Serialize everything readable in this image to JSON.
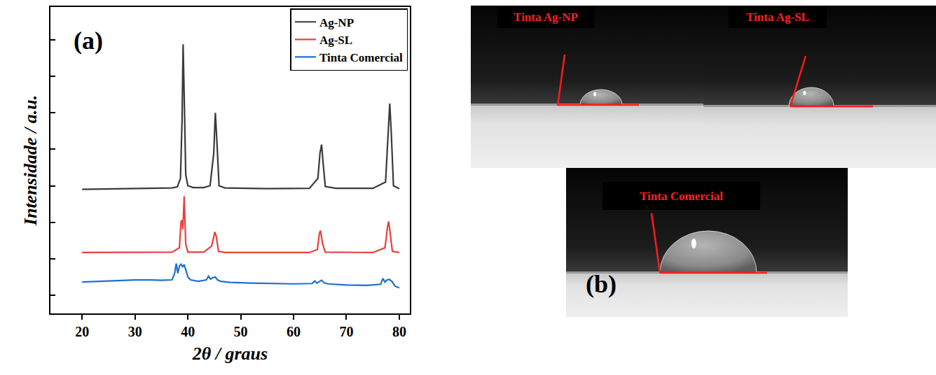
{
  "chart_data": {
    "type": "line",
    "panel_label": "(a)",
    "x_label": "2θ / graus",
    "y_label": "Intensidade / a.u.",
    "xlim": [
      14,
      82
    ],
    "xticks": [
      20,
      30,
      40,
      50,
      60,
      70,
      80
    ],
    "ylim": [
      -0.5,
      7.9
    ],
    "yticks": [
      0,
      1,
      2,
      3,
      4,
      5,
      6,
      7
    ],
    "tick_labels": "x",
    "legend": "top-right",
    "series": [
      {
        "name": "Ag-NP",
        "color": "#3a3a3a",
        "x": [
          20,
          30,
          37,
          38,
          38.6,
          38.9,
          39.1,
          39.3,
          39.6,
          40.0,
          41,
          43,
          44.2,
          44.9,
          45.2,
          45.5,
          45.9,
          47,
          55,
          63,
          64.6,
          65.0,
          65.3,
          65.6,
          66.0,
          68,
          75,
          77.4,
          77.9,
          78.2,
          78.5,
          78.9,
          80
        ],
        "values": [
          2.9,
          2.92,
          2.94,
          2.97,
          3.2,
          4.8,
          6.88,
          5.5,
          3.3,
          3.0,
          2.95,
          2.95,
          3.0,
          3.9,
          5.0,
          4.2,
          3.0,
          2.94,
          2.92,
          2.93,
          3.2,
          3.9,
          4.13,
          3.6,
          2.98,
          2.93,
          2.93,
          3.1,
          4.5,
          5.25,
          4.4,
          3.0,
          2.92
        ]
      },
      {
        "name": "Ag-SL",
        "color": "#e8413c",
        "x": [
          20,
          30,
          37,
          38.4,
          38.7,
          38.9,
          39.05,
          39.3,
          39.6,
          40,
          43,
          44.5,
          44.9,
          45.1,
          45.4,
          45.8,
          47,
          55,
          63,
          64.5,
          64.9,
          65.1,
          65.5,
          66,
          75,
          77.3,
          77.8,
          78.0,
          78.3,
          78.7,
          80
        ],
        "values": [
          1.17,
          1.17,
          1.18,
          1.3,
          2.0,
          2.06,
          1.8,
          2.71,
          1.4,
          1.18,
          1.18,
          1.35,
          1.65,
          1.73,
          1.6,
          1.2,
          1.17,
          1.17,
          1.17,
          1.25,
          1.7,
          1.77,
          1.4,
          1.18,
          1.17,
          1.3,
          1.9,
          2.02,
          1.7,
          1.2,
          1.17
        ]
      },
      {
        "name": "Tinta Comercial",
        "color": "#1f6fd1",
        "x": [
          20,
          22,
          25,
          28,
          30,
          33,
          35,
          37,
          37.5,
          37.8,
          38.1,
          38.4,
          38.7,
          39.0,
          39.3,
          39.6,
          40.0,
          40.5,
          42,
          43.5,
          43.9,
          44.3,
          44.7,
          45.2,
          45.6,
          46.2,
          48,
          52,
          56,
          60,
          63.5,
          64.0,
          64.4,
          64.8,
          65.3,
          65.8,
          66.5,
          70,
          74,
          76.5,
          76.9,
          77.3,
          77.7,
          78.1,
          78.6,
          79.2,
          80
        ],
        "values": [
          0.36,
          0.37,
          0.39,
          0.41,
          0.42,
          0.42,
          0.41,
          0.42,
          0.6,
          0.87,
          0.6,
          0.8,
          0.85,
          0.78,
          0.84,
          0.7,
          0.5,
          0.42,
          0.38,
          0.42,
          0.52,
          0.44,
          0.48,
          0.5,
          0.42,
          0.38,
          0.35,
          0.33,
          0.32,
          0.31,
          0.32,
          0.39,
          0.33,
          0.36,
          0.41,
          0.34,
          0.31,
          0.28,
          0.27,
          0.3,
          0.46,
          0.36,
          0.42,
          0.43,
          0.38,
          0.25,
          0.2
        ]
      }
    ]
  },
  "photos": {
    "panel_label": "(b)",
    "droplets": [
      {
        "label": "Tinta Ag-NP"
      },
      {
        "label": "Tinta Ag-SL"
      },
      {
        "label": "Tinta Comercial"
      }
    ]
  }
}
